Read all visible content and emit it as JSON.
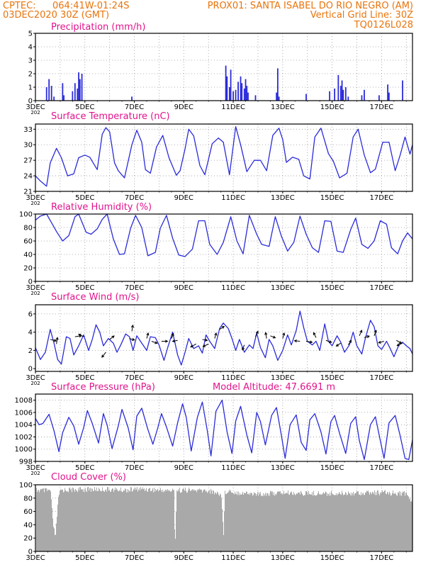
{
  "header": {
    "line1_left": "CPTEC:",
    "line1_coords": "064:41W-01:24S",
    "line1_station": "PROX01: SANTA ISABEL DO RIO NEGRO (AM)",
    "line2_left": "03DEC2020 30Z (GMT)",
    "line2_right": "Vertical Grid Line: 30Z",
    "line3_right": "TQ0126L028"
  },
  "colors": {
    "header": "#e8740c",
    "panel_title": "#e0148c",
    "series": "#2b2bd9",
    "cloud": "#a9a9a9",
    "grid": "#9a9a9a"
  },
  "chart_data": [
    {
      "type": "bar",
      "title": "Precipitation (mm/h)",
      "x_tick_labels": [
        "3DEC",
        "5DEC",
        "7DEC",
        "9DEC",
        "11DEC",
        "13DEC",
        "15DEC",
        "17DEC"
      ],
      "x_year_label": "202",
      "x_range_days": [
        3.0,
        18.25
      ],
      "ylim": [
        0,
        5
      ],
      "y_ticks": [
        0,
        1,
        2,
        3,
        4,
        5
      ],
      "grid": true,
      "events": [
        {
          "day": 3.45,
          "value": 1.0
        },
        {
          "day": 3.55,
          "value": 1.6
        },
        {
          "day": 3.65,
          "value": 1.1
        },
        {
          "day": 3.75,
          "value": 0.3
        },
        {
          "day": 4.1,
          "value": 1.3
        },
        {
          "day": 4.15,
          "value": 0.4
        },
        {
          "day": 4.5,
          "value": 0.7
        },
        {
          "day": 4.6,
          "value": 1.3
        },
        {
          "day": 4.7,
          "value": 0.9
        },
        {
          "day": 4.75,
          "value": 2.1
        },
        {
          "day": 4.8,
          "value": 1.6
        },
        {
          "day": 4.88,
          "value": 2.0
        },
        {
          "day": 6.9,
          "value": 0.3
        },
        {
          "day": 10.7,
          "value": 2.6
        },
        {
          "day": 10.75,
          "value": 1.8
        },
        {
          "day": 10.85,
          "value": 1.0
        },
        {
          "day": 10.9,
          "value": 2.3
        },
        {
          "day": 11.0,
          "value": 0.7
        },
        {
          "day": 11.1,
          "value": 0.8
        },
        {
          "day": 11.2,
          "value": 1.4
        },
        {
          "day": 11.3,
          "value": 1.8
        },
        {
          "day": 11.35,
          "value": 1.3
        },
        {
          "day": 11.45,
          "value": 0.9
        },
        {
          "day": 11.5,
          "value": 1.6
        },
        {
          "day": 11.55,
          "value": 1.1
        },
        {
          "day": 11.6,
          "value": 0.6
        },
        {
          "day": 11.9,
          "value": 0.4
        },
        {
          "day": 12.75,
          "value": 0.6
        },
        {
          "day": 12.8,
          "value": 2.4
        },
        {
          "day": 12.85,
          "value": 0.3
        },
        {
          "day": 13.95,
          "value": 0.5
        },
        {
          "day": 14.9,
          "value": 0.7
        },
        {
          "day": 15.1,
          "value": 0.9
        },
        {
          "day": 15.25,
          "value": 1.9
        },
        {
          "day": 15.35,
          "value": 1.1
        },
        {
          "day": 15.4,
          "value": 1.5
        },
        {
          "day": 15.45,
          "value": 0.8
        },
        {
          "day": 15.55,
          "value": 1.0
        },
        {
          "day": 15.65,
          "value": 0.3
        },
        {
          "day": 16.2,
          "value": 0.4
        },
        {
          "day": 16.3,
          "value": 0.8
        },
        {
          "day": 16.9,
          "value": 0.4
        },
        {
          "day": 17.25,
          "value": 1.2
        },
        {
          "day": 17.3,
          "value": 0.6
        },
        {
          "day": 17.85,
          "value": 1.5
        }
      ]
    },
    {
      "type": "line",
      "title": "Surface Temperature (nC)",
      "x_tick_labels": [
        "3DEC",
        "5DEC",
        "7DEC",
        "9DEC",
        "11DEC",
        "13DEC",
        "15DEC",
        "17DEC"
      ],
      "x_year_label": "202",
      "x_range_days": [
        3.0,
        18.25
      ],
      "ylim": [
        21,
        34
      ],
      "y_ticks": [
        21,
        24,
        27,
        30,
        33
      ],
      "grid": true,
      "x": [
        3.0,
        3.2,
        3.45,
        3.6,
        3.85,
        4.05,
        4.3,
        4.55,
        4.75,
        5.0,
        5.2,
        5.5,
        5.7,
        5.85,
        6.0,
        6.2,
        6.35,
        6.6,
        6.9,
        7.1,
        7.3,
        7.45,
        7.65,
        7.9,
        8.15,
        8.4,
        8.7,
        8.85,
        9.05,
        9.2,
        9.4,
        9.65,
        9.85,
        10.15,
        10.4,
        10.6,
        10.85,
        11.1,
        11.3,
        11.55,
        11.85,
        12.1,
        12.35,
        12.6,
        12.85,
        13.0,
        13.15,
        13.4,
        13.65,
        13.85,
        14.1,
        14.3,
        14.55,
        14.85,
        15.05,
        15.3,
        15.6,
        15.85,
        16.05,
        16.3,
        16.55,
        16.75,
        17.05,
        17.3,
        17.55,
        17.75,
        17.95,
        18.15,
        18.25
      ],
      "y": [
        24.0,
        23.0,
        22.0,
        26.5,
        29.3,
        27.5,
        24.0,
        24.4,
        27.5,
        28.0,
        27.6,
        25.2,
        32.0,
        33.3,
        32.5,
        26.5,
        25.0,
        23.6,
        30.0,
        32.8,
        30.5,
        25.2,
        24.5,
        29.6,
        31.8,
        27.5,
        24.1,
        25.0,
        29.2,
        33.0,
        31.7,
        26.0,
        24.2,
        30.2,
        31.3,
        30.5,
        24.2,
        33.5,
        30.0,
        24.8,
        27.0,
        27.0,
        25.0,
        31.8,
        33.2,
        31.0,
        26.6,
        27.6,
        27.2,
        24.0,
        23.4,
        31.5,
        33.2,
        28.3,
        26.8,
        23.6,
        24.5,
        31.5,
        33.0,
        28.0,
        24.6,
        25.3,
        30.5,
        30.5,
        25.0,
        28.0,
        31.5,
        28.2,
        30.0
      ]
    },
    {
      "type": "line",
      "title": "Relative Humidity (%)",
      "x_tick_labels": [
        "3DEC",
        "5DEC",
        "7DEC",
        "9DEC",
        "11DEC",
        "13DEC",
        "15DEC",
        "17DEC"
      ],
      "x_year_label": "202",
      "x_range_days": [
        3.0,
        18.25
      ],
      "ylim": [
        0,
        100
      ],
      "y_ticks": [
        0,
        20,
        40,
        60,
        80,
        100
      ],
      "grid": true,
      "x": [
        3.0,
        3.2,
        3.45,
        3.7,
        3.85,
        4.1,
        4.35,
        4.6,
        4.75,
        5.05,
        5.25,
        5.5,
        5.7,
        5.9,
        6.15,
        6.4,
        6.6,
        6.85,
        7.05,
        7.3,
        7.55,
        7.85,
        8.05,
        8.3,
        8.55,
        8.8,
        9.05,
        9.35,
        9.6,
        9.85,
        10.05,
        10.35,
        10.6,
        10.9,
        11.15,
        11.4,
        11.65,
        11.95,
        12.15,
        12.45,
        12.7,
        12.95,
        13.2,
        13.45,
        13.7,
        13.95,
        14.2,
        14.45,
        14.7,
        14.95,
        15.2,
        15.45,
        15.75,
        15.95,
        16.2,
        16.45,
        16.7,
        16.95,
        17.2,
        17.4,
        17.65,
        17.85,
        18.05,
        18.25
      ],
      "y": [
        91,
        97,
        100,
        84,
        74,
        60,
        68,
        96,
        100,
        73,
        70,
        78,
        92,
        100,
        63,
        40,
        41,
        79,
        98,
        80,
        38,
        43,
        79,
        98,
        64,
        39,
        37,
        48,
        90,
        90,
        55,
        40,
        58,
        96,
        60,
        41,
        98,
        70,
        55,
        52,
        96,
        67,
        45,
        58,
        97,
        70,
        50,
        43,
        90,
        89,
        45,
        43,
        77,
        94,
        55,
        49,
        60,
        90,
        85,
        50,
        41,
        60,
        72,
        63
      ]
    },
    {
      "type": "line",
      "title": "Surface Wind (m/s)",
      "x_tick_labels": [
        "3DEC",
        "5DEC",
        "7DEC",
        "9DEC",
        "11DEC",
        "13DEC",
        "15DEC",
        "17DEC"
      ],
      "x_year_label": "202",
      "x_range_days": [
        3.0,
        18.25
      ],
      "ylim": [
        -0.3,
        7.0
      ],
      "y_ticks": [
        0,
        2,
        4,
        6
      ],
      "grid": true,
      "x": [
        3.0,
        3.2,
        3.4,
        3.6,
        3.75,
        3.9,
        4.05,
        4.25,
        4.4,
        4.55,
        4.75,
        4.95,
        5.15,
        5.3,
        5.45,
        5.6,
        5.75,
        5.95,
        6.15,
        6.3,
        6.45,
        6.65,
        6.8,
        6.95,
        7.1,
        7.3,
        7.5,
        7.65,
        7.85,
        8.0,
        8.2,
        8.35,
        8.55,
        8.75,
        8.9,
        9.05,
        9.2,
        9.4,
        9.6,
        9.75,
        9.9,
        10.05,
        10.25,
        10.45,
        10.6,
        10.8,
        10.95,
        11.1,
        11.25,
        11.45,
        11.65,
        11.8,
        11.95,
        12.1,
        12.3,
        12.45,
        12.6,
        12.8,
        13.0,
        13.2,
        13.35,
        13.55,
        13.7,
        13.85,
        14.0,
        14.2,
        14.35,
        14.5,
        14.7,
        14.85,
        15.0,
        15.2,
        15.35,
        15.5,
        15.7,
        15.85,
        16.0,
        16.2,
        16.35,
        16.55,
        16.7,
        16.85,
        17.0,
        17.2,
        17.35,
        17.5,
        17.7,
        17.85,
        18.0,
        18.15,
        18.25
      ],
      "y": [
        2.3,
        1.0,
        1.8,
        4.3,
        2.8,
        1.0,
        0.5,
        3.5,
        3.3,
        1.5,
        2.5,
        3.7,
        2.0,
        3.2,
        4.8,
        4.0,
        2.5,
        3.3,
        2.8,
        1.8,
        2.6,
        3.8,
        3.5,
        2.0,
        3.6,
        2.8,
        2.0,
        3.5,
        3.4,
        2.6,
        0.9,
        2.3,
        4.0,
        1.5,
        0.4,
        1.8,
        3.3,
        2.2,
        2.5,
        1.7,
        3.7,
        3.0,
        2.2,
        4.4,
        5.0,
        4.4,
        3.3,
        2.0,
        3.2,
        1.8,
        2.6,
        2.2,
        3.9,
        2.3,
        1.2,
        3.2,
        2.5,
        0.9,
        2.0,
        3.7,
        2.6,
        4.2,
        6.3,
        4.5,
        3.0,
        2.6,
        3.0,
        2.0,
        4.9,
        3.0,
        2.5,
        3.6,
        2.9,
        1.8,
        2.6,
        4.0,
        2.5,
        1.6,
        3.4,
        5.3,
        4.6,
        2.5,
        2.1,
        3.0,
        2.2,
        1.3,
        2.6,
        2.9,
        2.5,
        2.2,
        1.6
      ],
      "vectors": [
        {
          "day": 3.6,
          "value": 3.2,
          "u": 1.2,
          "v": -0.3
        },
        {
          "day": 3.85,
          "value": 2.7,
          "u": 0.2,
          "v": 1.3
        },
        {
          "day": 4.6,
          "value": 3.5,
          "u": 1.3,
          "v": 0.2
        },
        {
          "day": 4.95,
          "value": 3.5,
          "u": -1.0,
          "v": 0.5
        },
        {
          "day": 5.85,
          "value": 1.8,
          "u": -0.8,
          "v": -1.0
        },
        {
          "day": 6.0,
          "value": 3.2,
          "u": 0.9,
          "v": 0.7
        },
        {
          "day": 6.8,
          "value": 3.3,
          "u": 1.0,
          "v": -0.3
        },
        {
          "day": 6.9,
          "value": 4.1,
          "u": 0.2,
          "v": 1.2
        },
        {
          "day": 7.5,
          "value": 3.3,
          "u": 0.3,
          "v": 1.1
        },
        {
          "day": 7.7,
          "value": 3.0,
          "u": 1.1,
          "v": -0.4
        },
        {
          "day": 8.1,
          "value": 3.0,
          "u": 1.2,
          "v": 0.0
        },
        {
          "day": 8.5,
          "value": 3.3,
          "u": 0.4,
          "v": 1.0
        },
        {
          "day": 8.75,
          "value": 3.1,
          "u": -1.0,
          "v": -0.2
        },
        {
          "day": 9.5,
          "value": 2.7,
          "u": -1.1,
          "v": -0.6
        },
        {
          "day": 9.75,
          "value": 3.2,
          "u": 1.0,
          "v": -0.2
        },
        {
          "day": 10.0,
          "value": 2.7,
          "u": -1.1,
          "v": -0.5
        },
        {
          "day": 10.25,
          "value": 3.3,
          "u": 0.3,
          "v": 1.1
        },
        {
          "day": 10.45,
          "value": 4.3,
          "u": 0.9,
          "v": 0.6
        },
        {
          "day": 11.45,
          "value": 2.6,
          "u": -0.4,
          "v": -1.0
        },
        {
          "day": 11.9,
          "value": 3.5,
          "u": 0.5,
          "v": 1.1
        },
        {
          "day": 12.35,
          "value": 3.3,
          "u": -0.2,
          "v": 1.2
        },
        {
          "day": 12.5,
          "value": 3.6,
          "u": 1.0,
          "v": -0.4
        },
        {
          "day": 13.0,
          "value": 3.3,
          "u": 0.3,
          "v": 1.1
        },
        {
          "day": 13.7,
          "value": 3.0,
          "u": -1.1,
          "v": 0.1
        },
        {
          "day": 13.95,
          "value": 3.0,
          "u": 1.2,
          "v": -0.2
        },
        {
          "day": 14.35,
          "value": 3.4,
          "u": -0.5,
          "v": 1.0
        },
        {
          "day": 14.75,
          "value": 3.1,
          "u": 1.1,
          "v": -0.4
        },
        {
          "day": 15.35,
          "value": 2.8,
          "u": -0.9,
          "v": -0.6
        },
        {
          "day": 15.65,
          "value": 2.6,
          "u": 0.6,
          "v": 0.9
        },
        {
          "day": 16.1,
          "value": 3.6,
          "u": 0.5,
          "v": 1.1
        },
        {
          "day": 16.3,
          "value": 3.4,
          "u": 1.0,
          "v": 0.3
        },
        {
          "day": 16.7,
          "value": 3.6,
          "u": 0.4,
          "v": 1.1
        },
        {
          "day": 17.1,
          "value": 3.0,
          "u": -1.1,
          "v": -0.3
        },
        {
          "day": 17.6,
          "value": 3.1,
          "u": 1.0,
          "v": -0.6
        },
        {
          "day": 17.85,
          "value": 2.8,
          "u": -1.1,
          "v": -0.5
        }
      ]
    },
    {
      "type": "line",
      "title": "Surface Pressure (hPa)",
      "annotation": "Model Altitude: 47.6691 m",
      "x_tick_labels": [
        "3DEC",
        "5DEC",
        "7DEC",
        "9DEC",
        "11DEC",
        "13DEC",
        "15DEC",
        "17DEC"
      ],
      "x_year_label": "202",
      "x_range_days": [
        3.0,
        18.25
      ],
      "ylim": [
        998,
        1009
      ],
      "y_ticks": [
        998,
        1000,
        1002,
        1004,
        1006,
        1008
      ],
      "grid": true,
      "x": [
        3.0,
        3.15,
        3.3,
        3.55,
        3.75,
        3.95,
        4.1,
        4.35,
        4.55,
        4.75,
        4.95,
        5.1,
        5.3,
        5.55,
        5.75,
        5.9,
        6.1,
        6.35,
        6.5,
        6.75,
        6.95,
        7.1,
        7.3,
        7.55,
        7.75,
        7.95,
        8.1,
        8.3,
        8.55,
        8.75,
        8.95,
        9.1,
        9.3,
        9.55,
        9.75,
        9.95,
        10.1,
        10.3,
        10.55,
        10.75,
        10.95,
        11.1,
        11.3,
        11.55,
        11.75,
        11.95,
        12.1,
        12.3,
        12.55,
        12.75,
        12.95,
        13.1,
        13.3,
        13.55,
        13.75,
        13.95,
        14.1,
        14.3,
        14.55,
        14.75,
        14.95,
        15.1,
        15.3,
        15.55,
        15.75,
        15.95,
        16.1,
        16.3,
        16.55,
        16.75,
        16.95,
        17.1,
        17.3,
        17.55,
        17.75,
        17.95,
        18.1,
        18.25
      ],
      "y": [
        1005.0,
        1004.0,
        1004.2,
        1005.7,
        1003.0,
        999.6,
        1002.7,
        1005.2,
        1003.8,
        1000.8,
        1003.5,
        1006.3,
        1004.2,
        1001.0,
        1005.8,
        1003.9,
        1000.1,
        1003.8,
        1006.5,
        1003.5,
        999.9,
        1005.4,
        1006.7,
        1003.2,
        1000.8,
        1003.5,
        1005.8,
        1003.6,
        1000.5,
        1004.3,
        1007.4,
        1005.2,
        999.7,
        1005.2,
        1007.7,
        1003.0,
        998.9,
        1006.2,
        1008.0,
        1002.8,
        999.3,
        1004.6,
        1007.0,
        1002.3,
        999.4,
        1006.0,
        1004.5,
        1000.7,
        1005.5,
        1006.8,
        1002.2,
        998.5,
        1004.0,
        1005.6,
        1001.1,
        999.8,
        1004.8,
        1005.8,
        1002.8,
        999.2,
        1004.5,
        1005.5,
        1002.6,
        999.3,
        1004.2,
        1005.3,
        1001.4,
        998.3,
        1004.0,
        1005.3,
        1001.4,
        998.5,
        1004.3,
        1005.5,
        1002.2,
        998.5,
        998.3,
        1001.5
      ]
    },
    {
      "type": "bar",
      "title": "Cloud Cover (%)",
      "x_tick_labels": [
        "3DEC",
        "5DEC",
        "7DEC",
        "9DEC",
        "11DEC",
        "13DEC",
        "15DEC",
        "17DEC"
      ],
      "x_year_label": "202",
      "x_range_days": [
        3.0,
        18.25
      ],
      "ylim": [
        0,
        100
      ],
      "y_ticks": [
        0,
        20,
        40,
        60,
        80,
        100
      ],
      "grid": true,
      "hourly_profile_days": [
        3.0,
        3.6,
        3.7,
        3.8,
        3.9,
        4.0,
        5.0,
        6.0,
        6.5,
        7.0,
        7.2,
        8.0,
        8.6,
        8.63,
        8.7,
        9.0,
        10.0,
        10.5,
        10.6,
        10.65,
        10.8,
        11.0,
        12.0,
        13.0,
        14.0,
        15.0,
        16.0,
        17.0,
        18.0,
        18.25
      ],
      "hourly_profile_values": [
        96,
        95,
        45,
        25,
        80,
        96,
        97,
        97,
        96,
        97,
        98,
        96,
        95,
        4,
        96,
        96,
        95,
        90,
        30,
        92,
        96,
        93,
        90,
        92,
        91,
        91,
        92,
        92,
        91,
        75
      ]
    }
  ]
}
